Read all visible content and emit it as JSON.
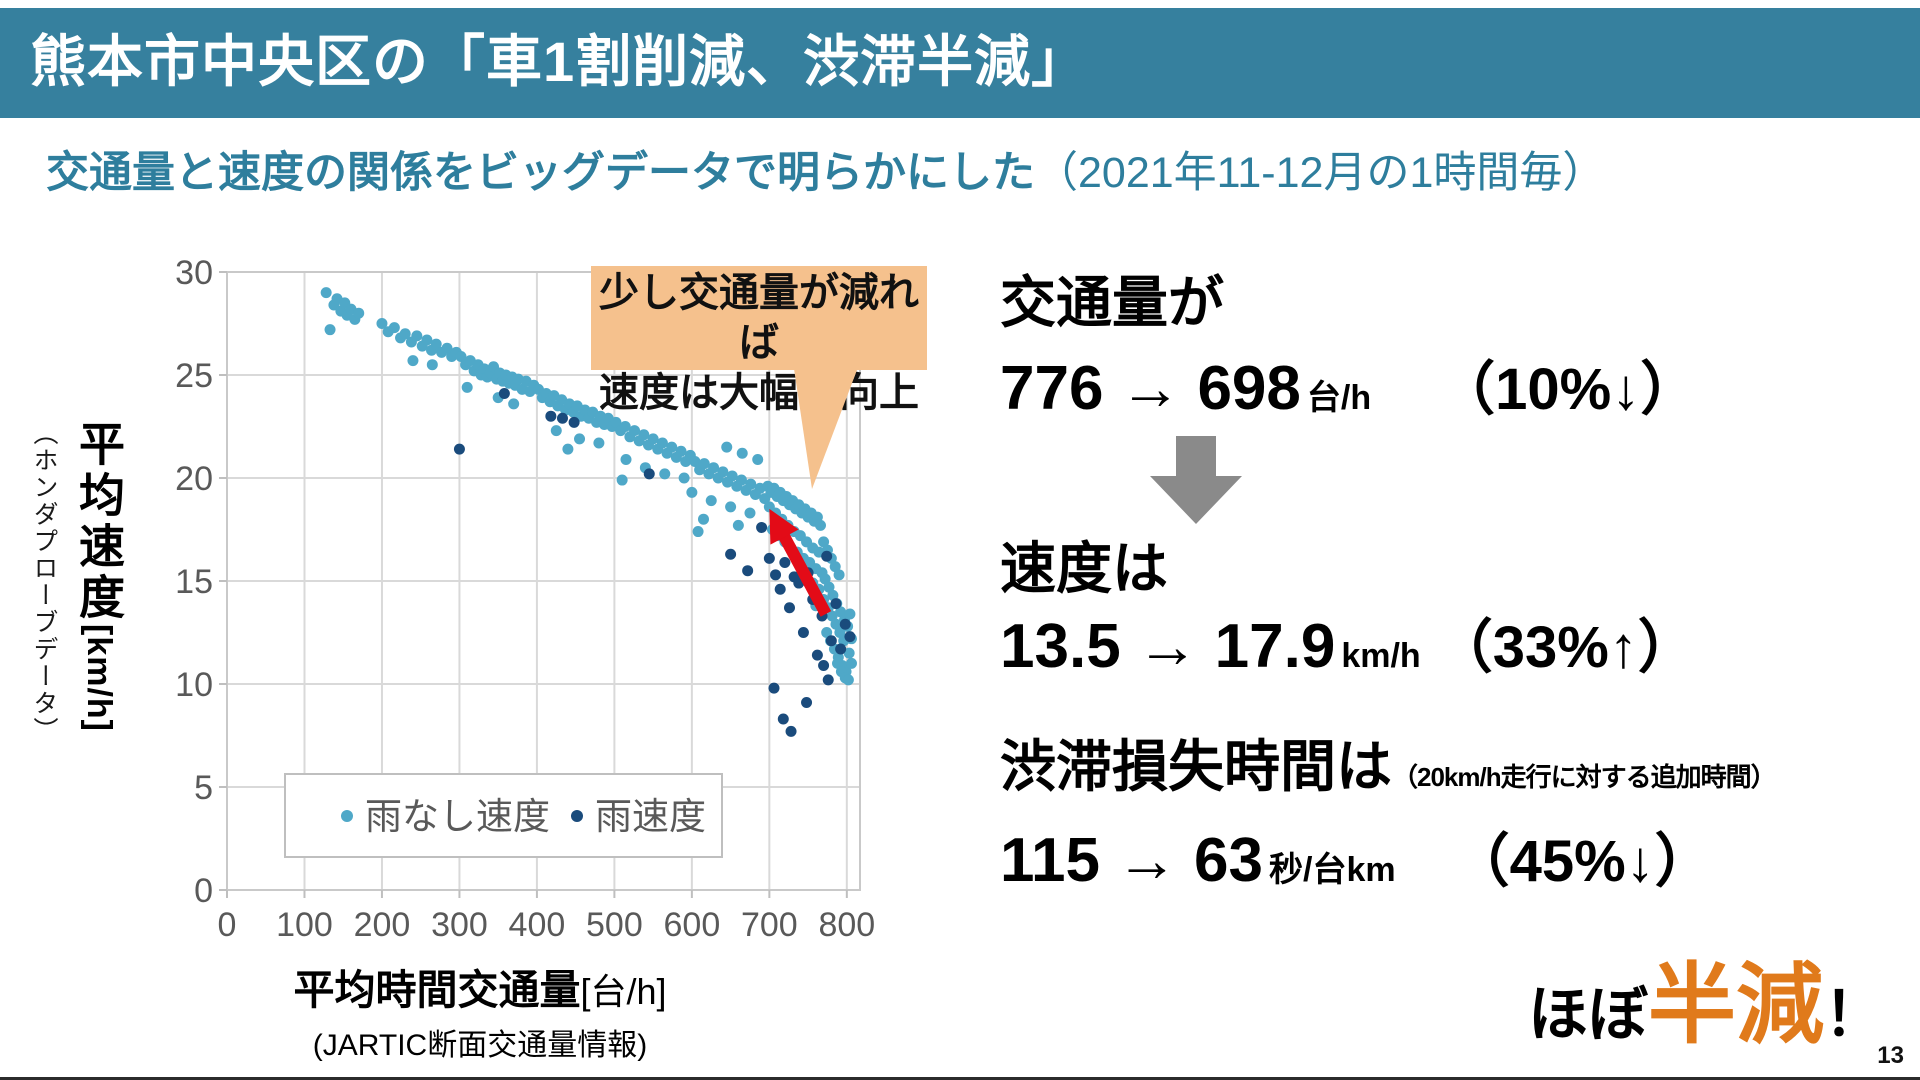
{
  "slide": {
    "title": "熊本市中央区の「車1割削減、渋滞半減」",
    "subtitle_main": "交通量と速度の関係をビッグデータで明らかにした",
    "subtitle_paren": "（2021年11-12月の1時間毎）",
    "page_number": "13"
  },
  "colors": {
    "header_bg": "#36809e",
    "subtitle_text": "#2e7e9d",
    "callout_bg": "#f5c18d",
    "no_rain_point": "#4fa8c8",
    "rain_point": "#1a4b7c",
    "red_arrow": "#e30b17",
    "gray_arrow": "#8a8a8a",
    "highlight_orange": "#e07a1b",
    "axis_text": "#595959",
    "grid": "#d9d9d9"
  },
  "chart_data": {
    "type": "scatter",
    "xlabel": "平均時間交通量",
    "xlabel_unit": "[台/h]",
    "xlabel_source": "(JARTIC断面交通量情報)",
    "ylabel": "平均速度",
    "ylabel_unit": "[km/h]",
    "ylabel_source": "（ホンダプローブデータ）",
    "xlim": [
      0,
      817
    ],
    "ylim": [
      0,
      30
    ],
    "xticks": [
      0,
      100,
      200,
      300,
      400,
      500,
      600,
      700,
      800
    ],
    "yticks": [
      0,
      5,
      10,
      15,
      20,
      25,
      30
    ],
    "grid": true,
    "legend_position": "inside-bottom-left",
    "legend": [
      {
        "label": "雨なし速度",
        "color": "#4fa8c8"
      },
      {
        "label": "雨速度",
        "color": "#1a4b7c"
      }
    ],
    "annotation": {
      "line1": "少し交通量が減れば",
      "line2": "速度は大幅に向上",
      "pointer_tip": [
        753,
        19.8
      ]
    },
    "arrow": {
      "from": [
        773,
        13.4
      ],
      "to": [
        700,
        18.5
      ],
      "color": "#e30b17"
    },
    "series": [
      {
        "name": "雨なし速度",
        "color": "#4fa8c8",
        "points": [
          [
            128,
            29
          ],
          [
            138,
            28.4
          ],
          [
            142,
            28.7
          ],
          [
            147,
            28.1
          ],
          [
            152,
            28.5
          ],
          [
            155,
            27.9
          ],
          [
            160,
            28.2
          ],
          [
            165,
            27.7
          ],
          [
            170,
            28
          ],
          [
            133,
            27.2
          ],
          [
            200,
            27.5
          ],
          [
            208,
            27.1
          ],
          [
            216,
            27.3
          ],
          [
            224,
            26.8
          ],
          [
            230,
            27
          ],
          [
            238,
            26.6
          ],
          [
            245,
            26.9
          ],
          [
            252,
            26.4
          ],
          [
            258,
            26.7
          ],
          [
            264,
            26.2
          ],
          [
            270,
            26.5
          ],
          [
            277,
            26.1
          ],
          [
            284,
            26.3
          ],
          [
            290,
            25.9
          ],
          [
            296,
            26.1
          ],
          [
            240,
            25.7
          ],
          [
            265,
            25.5
          ],
          [
            302,
            25.9
          ],
          [
            308,
            25.5
          ],
          [
            314,
            25.7
          ],
          [
            319,
            25.2
          ],
          [
            324,
            25.5
          ],
          [
            328,
            25
          ],
          [
            332,
            25.3
          ],
          [
            336,
            24.9
          ],
          [
            340,
            25.1
          ],
          [
            344,
            25.4
          ],
          [
            348,
            24.8
          ],
          [
            352,
            25.1
          ],
          [
            356,
            24.7
          ],
          [
            360,
            25
          ],
          [
            364,
            24.6
          ],
          [
            368,
            24.9
          ],
          [
            372,
            24.5
          ],
          [
            376,
            24.8
          ],
          [
            381,
            24.3
          ],
          [
            386,
            24.7
          ],
          [
            391,
            24.2
          ],
          [
            396,
            24.5
          ],
          [
            310,
            24.4
          ],
          [
            350,
            23.9
          ],
          [
            370,
            23.6
          ],
          [
            402,
            24.3
          ],
          [
            407,
            23.9
          ],
          [
            412,
            24.1
          ],
          [
            417,
            23.7
          ],
          [
            422,
            24
          ],
          [
            427,
            23.5
          ],
          [
            432,
            23.8
          ],
          [
            437,
            23.3
          ],
          [
            442,
            23.6
          ],
          [
            447,
            23.2
          ],
          [
            452,
            23.5
          ],
          [
            457,
            23
          ],
          [
            462,
            23.3
          ],
          [
            467,
            22.9
          ],
          [
            472,
            23.2
          ],
          [
            477,
            22.7
          ],
          [
            482,
            23
          ],
          [
            487,
            22.6
          ],
          [
            492,
            22.9
          ],
          [
            497,
            22.5
          ],
          [
            425,
            22.3
          ],
          [
            455,
            21.9
          ],
          [
            480,
            21.7
          ],
          [
            440,
            21.4
          ],
          [
            502,
            22.7
          ],
          [
            508,
            22.3
          ],
          [
            514,
            22.5
          ],
          [
            520,
            22
          ],
          [
            526,
            22.3
          ],
          [
            532,
            21.8
          ],
          [
            538,
            22.1
          ],
          [
            544,
            21.6
          ],
          [
            550,
            21.9
          ],
          [
            556,
            21.4
          ],
          [
            562,
            21.7
          ],
          [
            568,
            21.2
          ],
          [
            574,
            21.5
          ],
          [
            580,
            21
          ],
          [
            586,
            21.3
          ],
          [
            592,
            20.8
          ],
          [
            598,
            21.1
          ],
          [
            515,
            20.9
          ],
          [
            540,
            20.5
          ],
          [
            565,
            20.2
          ],
          [
            590,
            20
          ],
          [
            510,
            19.9
          ],
          [
            604,
            20.8
          ],
          [
            610,
            20.4
          ],
          [
            616,
            20.7
          ],
          [
            622,
            20.2
          ],
          [
            628,
            20.5
          ],
          [
            634,
            20
          ],
          [
            640,
            20.3
          ],
          [
            646,
            19.8
          ],
          [
            652,
            20.1
          ],
          [
            658,
            19.6
          ],
          [
            664,
            19.9
          ],
          [
            670,
            19.4
          ],
          [
            676,
            19.7
          ],
          [
            682,
            19.2
          ],
          [
            688,
            19.5
          ],
          [
            694,
            19
          ],
          [
            600,
            19.3
          ],
          [
            625,
            18.9
          ],
          [
            650,
            18.6
          ],
          [
            675,
            18.3
          ],
          [
            615,
            18
          ],
          [
            660,
            17.7
          ],
          [
            608,
            17.4
          ],
          [
            645,
            21.5
          ],
          [
            665,
            21.2
          ],
          [
            685,
            20.9
          ],
          [
            698,
            19.6
          ],
          [
            702,
            19.3
          ],
          [
            706,
            19.5
          ],
          [
            710,
            19.1
          ],
          [
            714,
            19.3
          ],
          [
            718,
            18.9
          ],
          [
            722,
            19.1
          ],
          [
            726,
            18.7
          ],
          [
            730,
            18.9
          ],
          [
            734,
            18.5
          ],
          [
            738,
            18.7
          ],
          [
            742,
            18.3
          ],
          [
            746,
            18.5
          ],
          [
            750,
            18.1
          ],
          [
            754,
            18.3
          ],
          [
            758,
            17.9
          ],
          [
            762,
            18.1
          ],
          [
            766,
            17.7
          ],
          [
            700,
            18.6
          ],
          [
            708,
            18.3
          ],
          [
            716,
            18
          ],
          [
            724,
            17.7
          ],
          [
            732,
            17.4
          ],
          [
            740,
            17.2
          ],
          [
            748,
            16.9
          ],
          [
            756,
            16.6
          ],
          [
            764,
            16.4
          ],
          [
            704,
            17.5
          ],
          [
            712,
            17.2
          ],
          [
            720,
            16.9
          ],
          [
            728,
            16.6
          ],
          [
            736,
            16.4
          ],
          [
            744,
            16.1
          ],
          [
            752,
            15.9
          ],
          [
            760,
            15.6
          ],
          [
            768,
            15.4
          ],
          [
            770,
            16.9
          ],
          [
            775,
            16.5
          ],
          [
            780,
            16.1
          ],
          [
            785,
            15.7
          ],
          [
            790,
            15.3
          ],
          [
            772,
            15.1
          ],
          [
            777,
            14.7
          ],
          [
            782,
            14.3
          ],
          [
            787,
            13.9
          ],
          [
            792,
            13.5
          ],
          [
            797,
            13.1
          ],
          [
            770,
            14.1
          ],
          [
            776,
            13.7
          ],
          [
            781,
            13.3
          ],
          [
            786,
            12.9
          ],
          [
            791,
            12.5
          ],
          [
            796,
            12.1
          ],
          [
            774,
            12.5
          ],
          [
            779,
            12.1
          ],
          [
            784,
            11.7
          ],
          [
            789,
            11.3
          ],
          [
            794,
            10.9
          ],
          [
            799,
            10.6
          ],
          [
            788,
            11
          ],
          [
            793,
            10.6
          ],
          [
            798,
            10.3
          ],
          [
            803,
            11.5
          ],
          [
            806,
            12.2
          ],
          [
            801,
            12.8
          ],
          [
            804,
            13.4
          ],
          [
            764,
            14.6
          ],
          [
            760,
            13.8
          ],
          [
            756,
            14.9
          ],
          [
            806,
            11
          ],
          [
            802,
            10.2
          ]
        ]
      },
      {
        "name": "雨速度",
        "color": "#1a4b7c",
        "points": [
          [
            300,
            21.4
          ],
          [
            358,
            24.1
          ],
          [
            418,
            23
          ],
          [
            433,
            22.9
          ],
          [
            448,
            22.7
          ],
          [
            545,
            20.2
          ],
          [
            650,
            16.3
          ],
          [
            672,
            15.5
          ],
          [
            690,
            17.6
          ],
          [
            700,
            16.1
          ],
          [
            708,
            15.3
          ],
          [
            714,
            14.6
          ],
          [
            720,
            15.9
          ],
          [
            726,
            13.7
          ],
          [
            732,
            15.2
          ],
          [
            738,
            14.9
          ],
          [
            744,
            12.5
          ],
          [
            750,
            15.4
          ],
          [
            756,
            14.1
          ],
          [
            762,
            11.4
          ],
          [
            768,
            13.3
          ],
          [
            774,
            16.2
          ],
          [
            780,
            12.1
          ],
          [
            786,
            13.9
          ],
          [
            792,
            11.7
          ],
          [
            798,
            12.9
          ],
          [
            804,
            12.3
          ],
          [
            770,
            10.9
          ],
          [
            706,
            9.8
          ],
          [
            718,
            8.3
          ],
          [
            728,
            7.7
          ],
          [
            748,
            9.1
          ],
          [
            776,
            10.2
          ]
        ]
      }
    ]
  },
  "stats": {
    "volume": {
      "label": "交通量が",
      "from": "776",
      "arrow": "→",
      "to": "698",
      "unit": "台/h",
      "change": "（10%↓）"
    },
    "speed": {
      "label": "速度は",
      "from": "13.5",
      "arrow": "→",
      "to": "17.9",
      "unit": "km/h",
      "change": "（33%↑）"
    },
    "loss": {
      "label": "渋滞損失時間は",
      "note": "（20km/h走行に対する追加時間）",
      "from": "115",
      "arrow": "→",
      "to": "63",
      "unit": "秒/台km",
      "change": "（45%↓）"
    }
  },
  "conclusion": {
    "prefix": "ほぼ",
    "highlight": "半減",
    "suffix": "！"
  }
}
